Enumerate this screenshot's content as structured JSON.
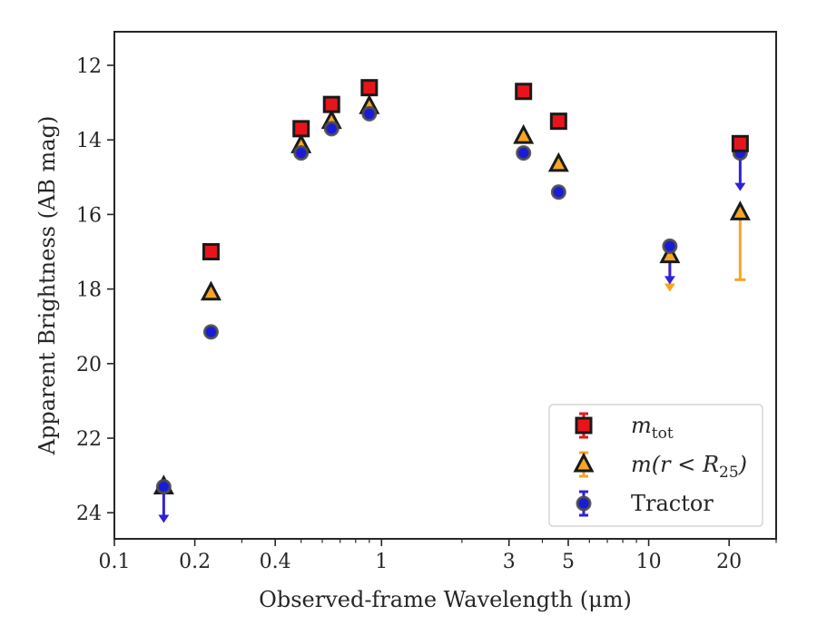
{
  "chart_data": {
    "type": "scatter",
    "title": "",
    "xlabel": "Observed-frame Wavelength (μm)",
    "ylabel": "Apparent Brightness (AB mag)",
    "xscale": "log",
    "xlim": [
      0.1,
      30
    ],
    "ylim": [
      24.7,
      11.1
    ],
    "y_inverted": true,
    "xticks": [
      {
        "value": 0.1,
        "label": "0.1"
      },
      {
        "value": 0.2,
        "label": "0.2"
      },
      {
        "value": 0.4,
        "label": "0.4"
      },
      {
        "value": 1,
        "label": "1"
      },
      {
        "value": 3,
        "label": "3"
      },
      {
        "value": 5,
        "label": "5"
      },
      {
        "value": 10,
        "label": "10"
      },
      {
        "value": 20,
        "label": "20"
      }
    ],
    "yticks": [
      {
        "value": 12,
        "label": "12"
      },
      {
        "value": 14,
        "label": "14"
      },
      {
        "value": 16,
        "label": "16"
      },
      {
        "value": 18,
        "label": "18"
      },
      {
        "value": 20,
        "label": "20"
      },
      {
        "value": 22,
        "label": "22"
      },
      {
        "value": 24,
        "label": "24"
      }
    ],
    "grid": false,
    "legend_position": "bottom-right",
    "series": [
      {
        "name": "m_tot",
        "legend_main": "m",
        "legend_sub": "tot",
        "marker": "square",
        "color": "#e8141b",
        "edge": "#1a1a1a",
        "errcolor": "#e8141b",
        "points": [
          {
            "x": 0.23,
            "y": 17.0
          },
          {
            "x": 0.5,
            "y": 13.7
          },
          {
            "x": 0.65,
            "y": 13.05
          },
          {
            "x": 0.9,
            "y": 12.6
          },
          {
            "x": 3.4,
            "y": 12.7
          },
          {
            "x": 4.6,
            "y": 13.5
          },
          {
            "x": 22,
            "y": 14.1
          }
        ]
      },
      {
        "name": "m(r < R25)",
        "legend_main": "m(r < R",
        "legend_sub": "25",
        "legend_end": ")",
        "marker": "triangle",
        "color": "#f5a623",
        "edge": "#1a1a1a",
        "errcolor": "#f5a623",
        "points": [
          {
            "x": 0.153,
            "y": 23.3,
            "upper_limit": true
          },
          {
            "x": 0.23,
            "y": 18.1
          },
          {
            "x": 0.5,
            "y": 14.15
          },
          {
            "x": 0.65,
            "y": 13.5
          },
          {
            "x": 0.9,
            "y": 13.1
          },
          {
            "x": 3.4,
            "y": 13.9
          },
          {
            "x": 4.6,
            "y": 14.65
          },
          {
            "x": 12,
            "y": 17.1,
            "upper_limit": true,
            "arrow_to": 18.0
          },
          {
            "x": 22,
            "y": 15.95,
            "yerr": 1.8
          }
        ]
      },
      {
        "name": "Tractor",
        "legend_main": "Tractor",
        "marker": "circle",
        "color": "#1a1adb",
        "edge": "#4d4d4d",
        "errcolor": "#2f22d6",
        "points": [
          {
            "x": 0.153,
            "y": 23.3,
            "upper_limit": true,
            "arrow_to": 24.2
          },
          {
            "x": 0.23,
            "y": 19.15
          },
          {
            "x": 0.5,
            "y": 14.35
          },
          {
            "x": 0.65,
            "y": 13.7
          },
          {
            "x": 0.9,
            "y": 13.3
          },
          {
            "x": 3.4,
            "y": 14.35
          },
          {
            "x": 4.6,
            "y": 15.4
          },
          {
            "x": 12,
            "y": 16.85,
            "upper_limit": true,
            "arrow_to": 17.8
          },
          {
            "x": 22,
            "y": 14.35,
            "upper_limit": true,
            "arrow_to": 15.3
          }
        ]
      }
    ]
  }
}
